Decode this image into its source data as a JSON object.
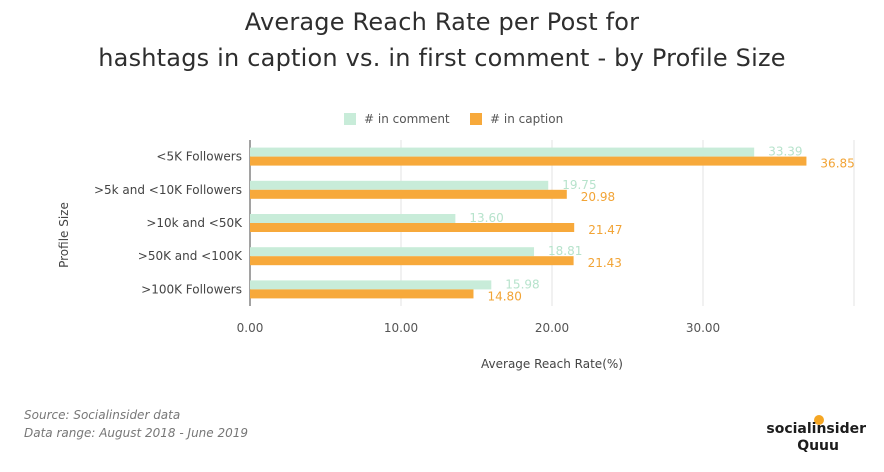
{
  "title_line1": "Average Reach Rate per Post for",
  "title_line2": "hashtags in caption vs. in first comment - by Profile Size",
  "footer": {
    "source": "Source: Socialinsider data",
    "range": "Data range: August 2018 - June 2019"
  },
  "brand": {
    "line1": "socialinsider",
    "line2": "Quuu"
  },
  "colors": {
    "comment": "#c8ecd9",
    "caption": "#f7a93b",
    "comment_label": "#b7e3cc",
    "caption_label": "#f2a436"
  },
  "chart_data": {
    "type": "bar",
    "orientation": "horizontal",
    "categories": [
      "<5K Followers",
      ">5k and <10K Followers",
      ">10k and <50K",
      ">50K and <100K",
      ">100K Followers"
    ],
    "series": [
      {
        "name": "# in comment",
        "values": [
          33.39,
          19.75,
          13.6,
          18.81,
          15.98
        ]
      },
      {
        "name": "# in caption",
        "values": [
          36.85,
          20.98,
          21.47,
          21.43,
          14.8
        ]
      }
    ],
    "value_labels": {
      "# in comment": [
        "33.39",
        "19.75",
        "13.60",
        "18.81",
        "15.98"
      ],
      "# in caption": [
        "36.85",
        "20.98",
        "21.47",
        "21.43",
        "14.80"
      ]
    },
    "xticks": [
      "0.00",
      "10.00",
      "20.00",
      "30.00"
    ],
    "xlim": [
      0,
      40
    ],
    "xlabel": "Average Reach Rate(%)",
    "ylabel": "Profile Size",
    "grid": true,
    "legend": "top"
  }
}
